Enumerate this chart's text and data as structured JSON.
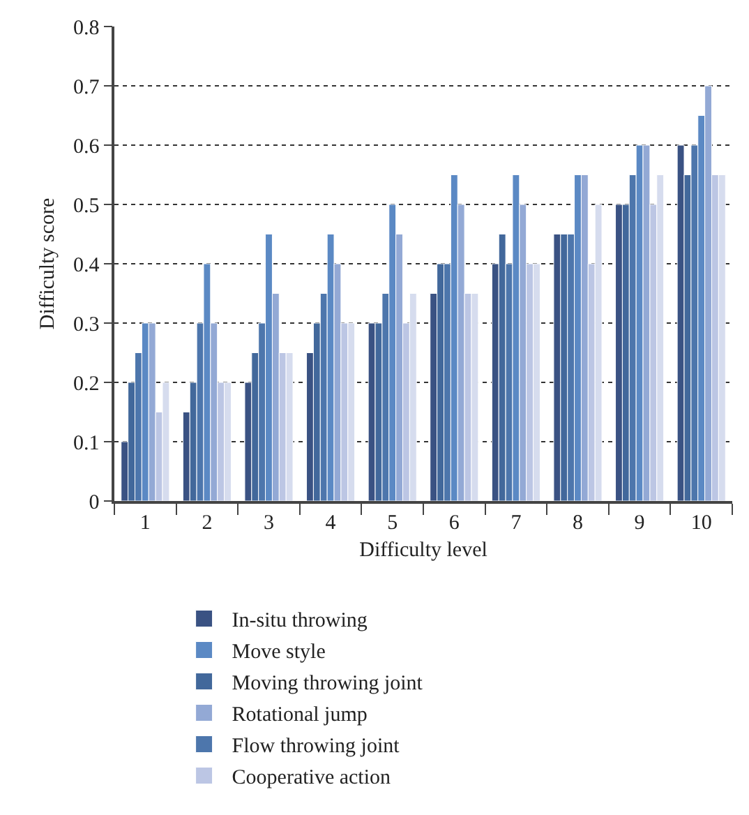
{
  "chart_data": {
    "type": "bar",
    "xlabel": "Difficulty level",
    "ylabel": "Difficulty score",
    "categories": [
      "1",
      "2",
      "3",
      "4",
      "5",
      "6",
      "7",
      "8",
      "9",
      "10"
    ],
    "series": [
      {
        "name": "In-situ throwing",
        "color": "#3a5283",
        "values": [
          0.1,
          0.15,
          0.2,
          0.25,
          0.3,
          0.35,
          0.4,
          0.45,
          0.5,
          0.6
        ]
      },
      {
        "name": "Moving throwing joint",
        "color": "#42689b",
        "values": [
          0.2,
          0.2,
          0.25,
          0.3,
          0.3,
          0.4,
          0.45,
          0.45,
          0.5,
          0.55
        ]
      },
      {
        "name": "Flow throwing joint",
        "color": "#4d76ac",
        "values": [
          0.25,
          0.3,
          0.3,
          0.35,
          0.35,
          0.4,
          0.4,
          0.45,
          0.55,
          0.6
        ]
      },
      {
        "name": "Move style",
        "color": "#5b89c4",
        "values": [
          0.3,
          0.4,
          0.45,
          0.45,
          0.5,
          0.55,
          0.55,
          0.55,
          0.6,
          0.65
        ]
      },
      {
        "name": "Rotational jump",
        "color": "#93a9d5",
        "values": [
          0.3,
          0.3,
          0.35,
          0.4,
          0.45,
          0.5,
          0.5,
          0.55,
          0.6,
          0.7
        ]
      },
      {
        "name": "Cooperative action",
        "color": "#bcc6e4",
        "values": [
          0.15,
          0.2,
          0.25,
          0.3,
          0.3,
          0.35,
          0.4,
          0.4,
          0.5,
          0.55
        ]
      },
      {
        "color": "#d6dcee",
        "values": [
          0.2,
          0.2,
          0.25,
          0.3,
          0.35,
          0.35,
          0.4,
          0.5,
          0.55,
          0.55
        ]
      }
    ],
    "ylim": [
      0,
      0.8
    ],
    "yticks": [
      0,
      0.1,
      0.2,
      0.3,
      0.4,
      0.5,
      0.6,
      0.7,
      0.8
    ],
    "grid": "y",
    "legend": "bottom"
  }
}
